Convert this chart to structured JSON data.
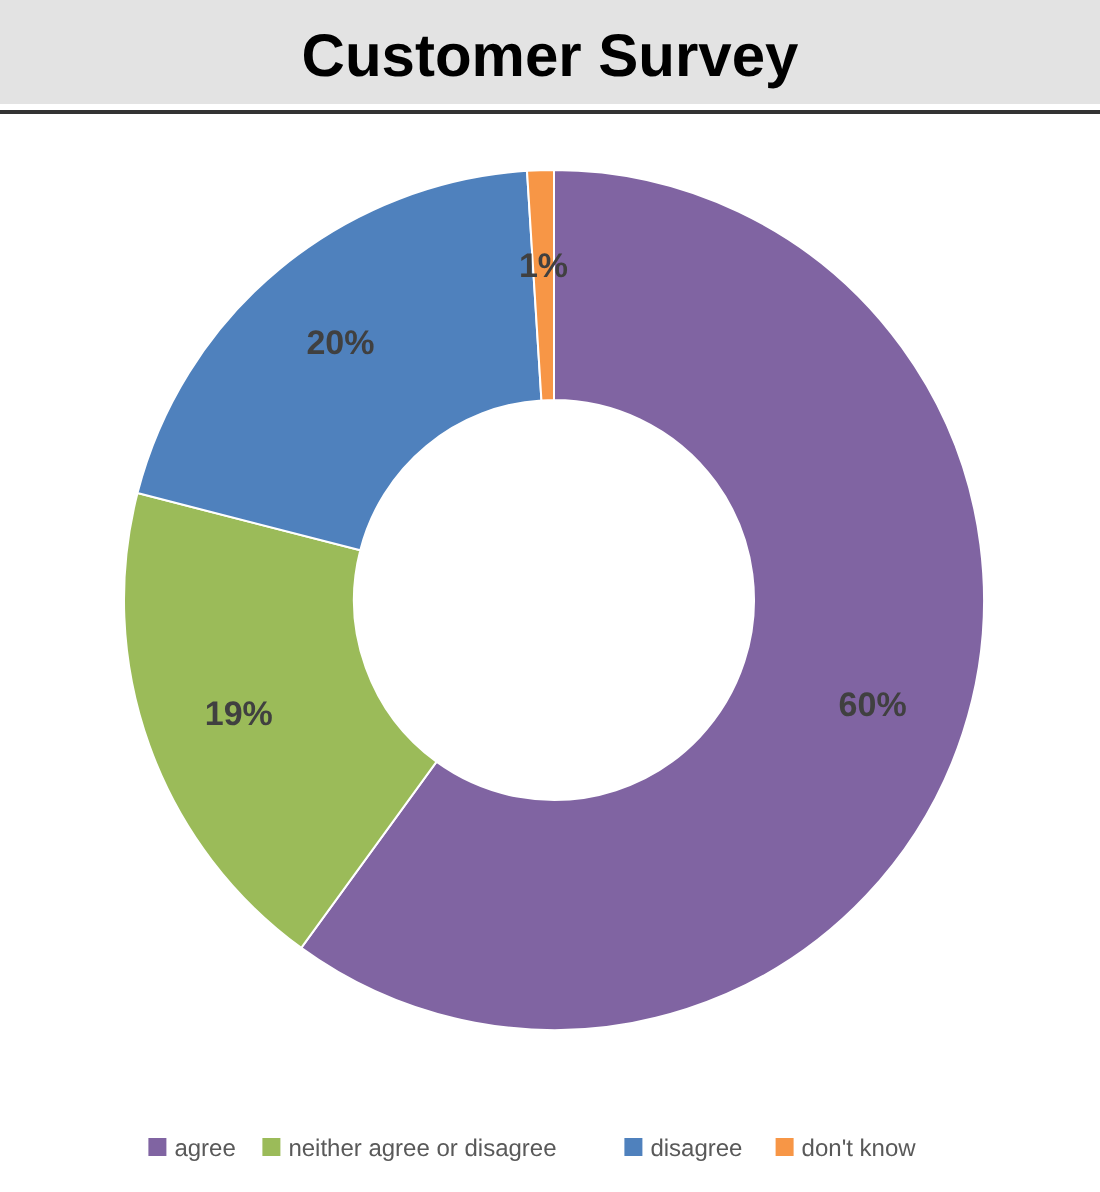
{
  "chart_data": {
    "type": "donut",
    "title": "Customer Survey",
    "categories": [
      "agree",
      "neither agree or disagree",
      "disagree",
      "don't know"
    ],
    "values": [
      60,
      19,
      20,
      1
    ],
    "colors": [
      "#8064a2",
      "#9bbb59",
      "#4f81bd",
      "#f79646"
    ],
    "value_labels": [
      "60%",
      "19%",
      "20%",
      "1%"
    ],
    "legend": "bottom"
  }
}
